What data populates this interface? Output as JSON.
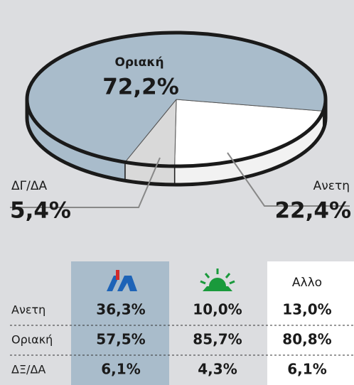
{
  "chart_data": {
    "type": "pie",
    "categories": [
      "Ανετη",
      "ΔΓ/ΔΑ",
      "Οριακή"
    ],
    "values": [
      22.4,
      5.4,
      72.2
    ],
    "value_labels": [
      "22,4%",
      "5,4%",
      "72,2%"
    ],
    "colors": [
      "#ffffff",
      "#d9d9d9",
      "#a9bccb"
    ]
  },
  "table": {
    "other_column": "Αλλο",
    "rows": [
      {
        "label": "Ανετη",
        "cells": [
          "36,3%",
          "10,0%",
          "13,0%"
        ]
      },
      {
        "label": "Οριακή",
        "cells": [
          "57,5%",
          "85,7%",
          "80,8%"
        ]
      },
      {
        "label": "ΔΞ/ΔΑ",
        "cells": [
          "6,1%",
          "4,3%",
          "6,1%"
        ]
      }
    ]
  }
}
